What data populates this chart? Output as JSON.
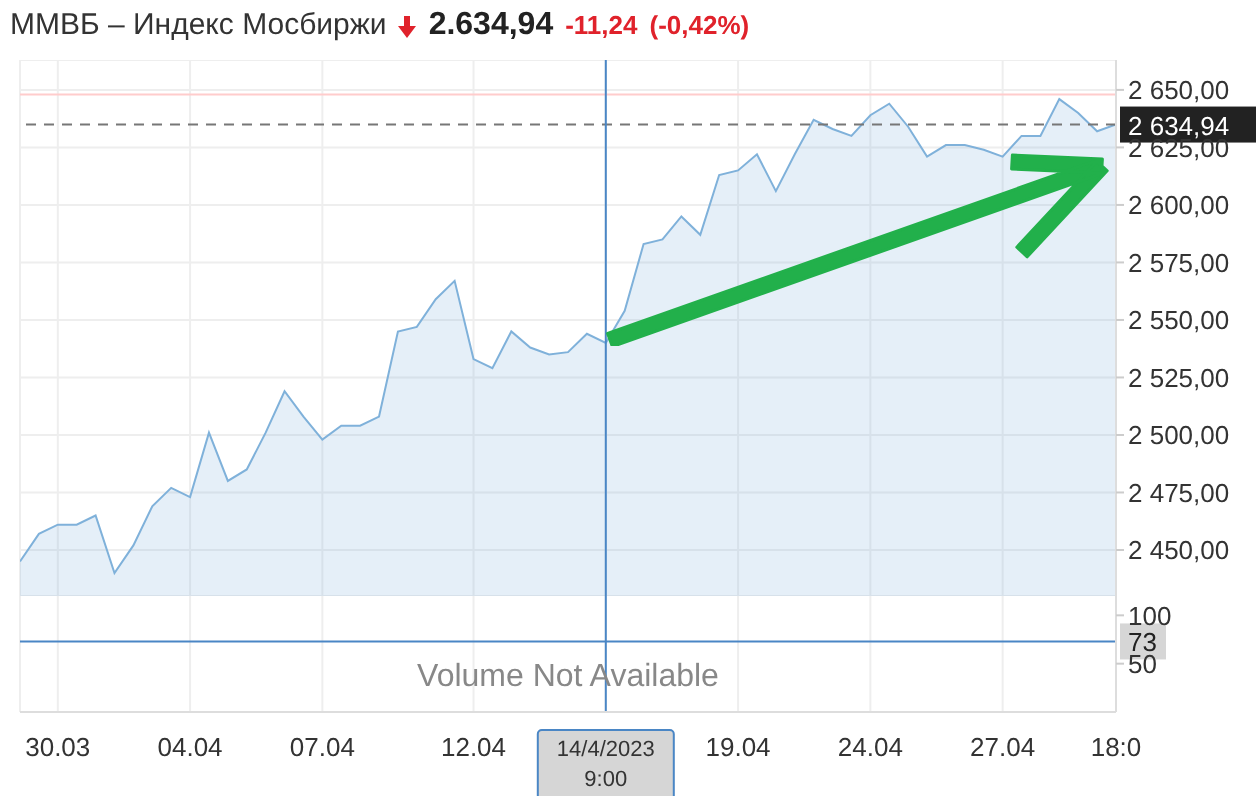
{
  "chart_data": [
    {
      "type": "area",
      "title": "ММВБ – Индекс Мосбиржи",
      "annotations": [
        "2.634,94",
        "-11,24",
        "(-0,42%)"
      ],
      "categories": [
        null,
        null,
        "30.03",
        null,
        null,
        null,
        null,
        null,
        null,
        "04.04",
        null,
        null,
        null,
        null,
        null,
        null,
        "07.04",
        null,
        null,
        null,
        null,
        null,
        null,
        null,
        "12.04",
        null,
        null,
        null,
        null,
        null,
        null,
        "14/4/2023 9:00",
        null,
        null,
        null,
        null,
        null,
        null,
        "19.04",
        null,
        null,
        null,
        null,
        null,
        null,
        "24.04",
        null,
        null,
        null,
        null,
        null,
        null,
        "27.04",
        null,
        null,
        null,
        null,
        null,
        "18:0"
      ],
      "series": [
        {
          "color": "#7fb1da",
          "values": [
            2445,
            2457,
            2461,
            2461,
            2465,
            2440,
            2452,
            2469,
            2477,
            2473,
            2501,
            2480,
            2485,
            2501,
            2519,
            2508,
            2498,
            2504,
            2504,
            2508,
            2545,
            2547,
            2559,
            2567,
            2533,
            2529,
            2545,
            2538,
            2535,
            2536,
            2544,
            2540,
            2554,
            2583,
            2585,
            2595,
            2587,
            2613,
            2615,
            2622,
            2606,
            2622,
            2637,
            2633,
            2630,
            2639,
            2644,
            2634,
            2621,
            2626,
            2626,
            2624,
            2621,
            2630,
            2630,
            2646,
            2640,
            2632,
            2634.94
          ]
        }
      ],
      "ylim": [
        2430,
        2663
      ],
      "yticks": [
        {
          "value": 2450,
          "label": "2 450,00"
        },
        {
          "value": 2475,
          "label": "2 475,00"
        },
        {
          "value": 2500,
          "label": "2 500,00"
        },
        {
          "value": 2525,
          "label": "2 525,00"
        },
        {
          "value": 2550,
          "label": "2 550,00"
        },
        {
          "value": 2575,
          "label": "2 575,00"
        },
        {
          "value": 2600,
          "label": "2 600,00"
        },
        {
          "value": 2625,
          "label": "2 625,00"
        },
        {
          "value": 2650,
          "label": "2 650,00"
        }
      ],
      "ref_lines": [
        {
          "axis": "y",
          "value": 2648,
          "color": "#ffcccc",
          "line_style": "solid"
        },
        {
          "axis": "y",
          "value": 2634.94,
          "label": "2 634,94",
          "color": "#777777",
          "line_style": "dashed"
        },
        {
          "axis": "x",
          "value": "14/4/2023 9:00",
          "color": "#4a86c5",
          "line_style": "solid"
        }
      ],
      "grid": true,
      "legend": false,
      "tick_labels": "y"
    },
    {
      "type": "bar",
      "annotations": [
        "Volume Not Available"
      ],
      "values": [
        null,
        null,
        null,
        null,
        null,
        null,
        null,
        null,
        null,
        null,
        null,
        null,
        null,
        null,
        null,
        null,
        null,
        null,
        null,
        null,
        null,
        null,
        null,
        null,
        null,
        null,
        null,
        null,
        null,
        null,
        null,
        null,
        null,
        null,
        null,
        null,
        null,
        null,
        null,
        null,
        null,
        null,
        null,
        null,
        null,
        null,
        null,
        null,
        null,
        null,
        null,
        null,
        null,
        null,
        null,
        null,
        null,
        null,
        null
      ],
      "categories": [
        null,
        null,
        "30.03",
        null,
        null,
        null,
        null,
        null,
        null,
        "04.04",
        null,
        null,
        null,
        null,
        null,
        null,
        "07.04",
        null,
        null,
        null,
        null,
        null,
        null,
        null,
        "12.04",
        null,
        null,
        null,
        null,
        null,
        null,
        "14/4/2023 9:00",
        null,
        null,
        null,
        null,
        null,
        null,
        "19.04",
        null,
        null,
        null,
        null,
        null,
        null,
        "24.04",
        null,
        null,
        null,
        null,
        null,
        null,
        "27.04",
        null,
        null,
        null,
        null,
        null,
        "18:0"
      ],
      "ylim": [
        0,
        120
      ],
      "yticks": [
        50,
        100
      ],
      "ref_lines": [
        {
          "axis": "y",
          "value": 73,
          "label": "73",
          "color": "#4a86c5",
          "line_style": "solid"
        },
        {
          "axis": "x",
          "value": "14/4/2023 9:00",
          "color": "#4a86c5",
          "line_style": "solid"
        }
      ],
      "grid": "x",
      "legend": false
    }
  ]
}
